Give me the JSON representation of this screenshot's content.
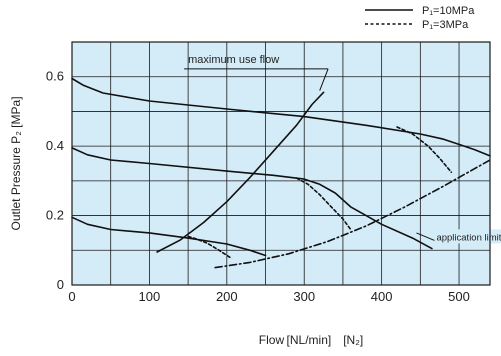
{
  "chart_data": {
    "type": "line",
    "xlabel": "Flow [NL/min]　[N₂]",
    "ylabel": "Outlet Pressure P₂ [MPa]",
    "xlim": [
      0,
      540
    ],
    "ylim": [
      0,
      0.7
    ],
    "x_ticks": [
      0,
      100,
      200,
      300,
      400,
      500
    ],
    "y_ticks": [
      0,
      0.2,
      0.4,
      0.6
    ],
    "x_tick_labels": [
      "0",
      "100",
      "200",
      "300",
      "400",
      "500"
    ],
    "y_tick_labels": [
      "0",
      "0.2",
      "0.4",
      "0.6"
    ],
    "grid": true,
    "background_color": "#d4ecf8",
    "legend": {
      "placement": "top-right",
      "entries": [
        {
          "label": "P₁=10MPa",
          "style": "solid"
        },
        {
          "label": "P₁=3MPa",
          "style": "dashed"
        }
      ]
    },
    "series": [
      {
        "name": "P₁=10MPa",
        "style": "solid",
        "x": [
          0,
          15,
          40,
          100,
          200,
          300,
          380,
          450,
          480,
          500,
          520,
          540
        ],
        "y": [
          0.595,
          0.575,
          0.553,
          0.53,
          0.507,
          0.485,
          0.46,
          0.435,
          0.42,
          0.405,
          0.39,
          0.372
        ]
      },
      {
        "name": "P₁=10MPa",
        "style": "solid",
        "x": [
          0,
          20,
          50,
          100,
          200,
          260,
          300,
          320,
          340,
          360,
          380,
          400,
          440,
          465
        ],
        "y": [
          0.395,
          0.375,
          0.36,
          0.35,
          0.328,
          0.316,
          0.305,
          0.29,
          0.265,
          0.225,
          0.2,
          0.175,
          0.135,
          0.105
        ]
      },
      {
        "name": "P₁=10MPa",
        "style": "solid",
        "x": [
          0,
          20,
          50,
          100,
          150,
          200,
          230,
          250
        ],
        "y": [
          0.195,
          0.175,
          0.16,
          0.15,
          0.135,
          0.118,
          0.1,
          0.085
        ]
      },
      {
        "name": "P₁=3MPa",
        "style": "dashed",
        "x": [
          420,
          440,
          460,
          475,
          490
        ],
        "y": [
          0.455,
          0.435,
          0.4,
          0.365,
          0.325
        ]
      },
      {
        "name": "P₁=3MPa",
        "style": "dashed",
        "x": [
          290,
          305,
          320,
          335,
          350,
          360
        ],
        "y": [
          0.308,
          0.29,
          0.26,
          0.225,
          0.19,
          0.16
        ]
      },
      {
        "name": "P₁=3MPa",
        "style": "dashed",
        "x": [
          150,
          160,
          175,
          190,
          205
        ],
        "y": [
          0.14,
          0.133,
          0.12,
          0.1,
          0.078
        ]
      },
      {
        "name": "maximum use flow",
        "style": "solid",
        "x": [
          110,
          140,
          170,
          200,
          230,
          260,
          290,
          310,
          325
        ],
        "y": [
          0.095,
          0.13,
          0.18,
          0.24,
          0.31,
          0.385,
          0.46,
          0.52,
          0.555
        ]
      },
      {
        "name": "application limits flow",
        "style": "dashdot",
        "x": [
          185,
          230,
          280,
          330,
          380,
          430,
          480,
          520,
          540
        ],
        "y": [
          0.05,
          0.065,
          0.09,
          0.125,
          0.17,
          0.225,
          0.285,
          0.335,
          0.36
        ]
      }
    ],
    "annotations": [
      {
        "text": "maximum use flow",
        "x": 320,
        "y": 0.56,
        "label_x": 150,
        "label_y": 0.64
      },
      {
        "text": "application limits flow",
        "x": 445,
        "y": 0.15,
        "label_x": 472,
        "label_y": 0.14
      }
    ]
  }
}
